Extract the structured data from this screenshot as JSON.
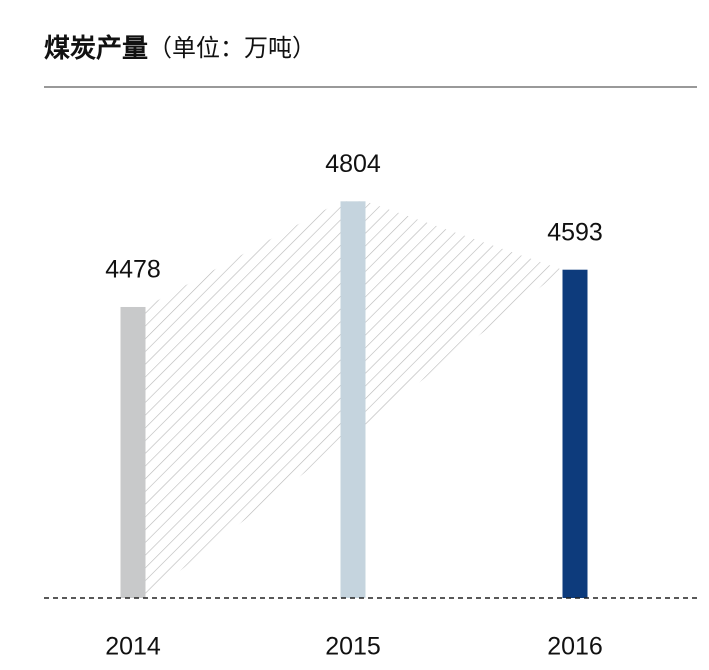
{
  "chart_data": {
    "type": "bar",
    "title": "煤炭产量",
    "subtitle": "（单位：万吨）",
    "categories": [
      "2014",
      "2015",
      "2016"
    ],
    "values": [
      4478,
      4804,
      4593
    ],
    "colors": [
      "#c8c9ca",
      "#c5d4de",
      "#0d3b7c"
    ],
    "ylim": [
      3580,
      4950
    ]
  }
}
